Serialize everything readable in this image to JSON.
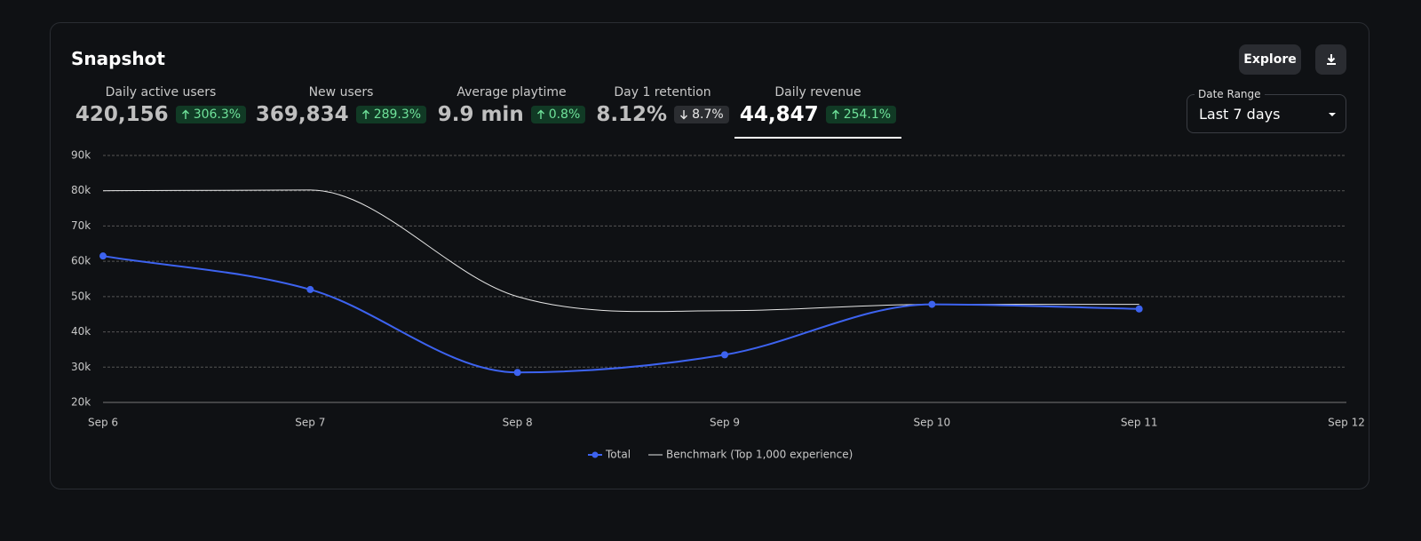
{
  "header": {
    "title": "Snapshot",
    "explore": "Explore"
  },
  "metrics": [
    {
      "label": "Daily active users",
      "value": "420,156",
      "change": "306.3%",
      "direction": "up"
    },
    {
      "label": "New users",
      "value": "369,834",
      "change": "289.3%",
      "direction": "up"
    },
    {
      "label": "Average playtime",
      "value": "9.9 min",
      "change": "0.8%",
      "direction": "up"
    },
    {
      "label": "Day 1 retention",
      "value": "8.12%",
      "change": "8.7%",
      "direction": "down"
    },
    {
      "label": "Daily revenue",
      "value": "44,847",
      "change": "254.1%",
      "direction": "up"
    }
  ],
  "selected_metric": 4,
  "date_range": {
    "label": "Date Range",
    "value": "Last 7 days"
  },
  "chart_data": {
    "type": "line",
    "x": [
      "Sep 6",
      "Sep 7",
      "Sep 8",
      "Sep 9",
      "Sep 10",
      "Sep 11",
      "Sep 12"
    ],
    "series": [
      {
        "name": "Total",
        "color": "#3d63f0",
        "values": [
          61500,
          52000,
          28500,
          33500,
          47800,
          46500,
          null
        ]
      },
      {
        "name": "Benchmark (Top 1,000 experience)",
        "color": "#e6e6e6",
        "values": [
          80000,
          80200,
          50000,
          46000,
          47800,
          47800,
          null
        ]
      }
    ],
    "ylim": [
      20000,
      90000
    ],
    "yticks": [
      {
        "value": 20000,
        "label": "20k"
      },
      {
        "value": 30000,
        "label": "30k"
      },
      {
        "value": 40000,
        "label": "40k"
      },
      {
        "value": 50000,
        "label": "50k"
      },
      {
        "value": 60000,
        "label": "60k"
      },
      {
        "value": 70000,
        "label": "70k"
      },
      {
        "value": 80000,
        "label": "80k"
      },
      {
        "value": 90000,
        "label": "90k"
      }
    ],
    "grid": true
  }
}
